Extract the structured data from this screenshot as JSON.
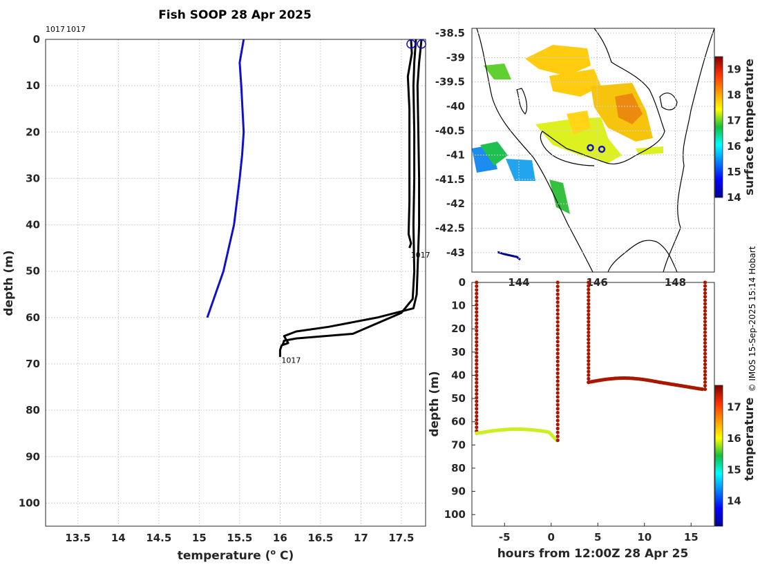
{
  "title": "Fish SOOP 28 Apr 2025",
  "credit": "© IMOS 15-Sep-2025 15:14 Hobart",
  "colors": {
    "blue_profile": "#1010cc",
    "black_profile": "#000000",
    "track_warm": "#a81800",
    "track_cool": "#ccee22"
  },
  "chart_data": [
    {
      "type": "line",
      "id": "profile",
      "xlabel": "temperature (",
      "xlabel_sup": "o",
      "xlabel_end": " C)",
      "ylabel": "depth (m)",
      "xlim": [
        13.1,
        17.8
      ],
      "ylim": [
        105,
        0
      ],
      "xticks": [
        "13.5",
        "14",
        "14.5",
        "15",
        "15.5",
        "16",
        "16.5",
        "17",
        "17.5"
      ],
      "yticks": [
        "0",
        "10",
        "20",
        "30",
        "40",
        "50",
        "60",
        "70",
        "80",
        "90",
        "100"
      ],
      "top_labels": [
        "1017",
        "1017"
      ],
      "series": [
        {
          "name": "blue",
          "color": "#1010cc",
          "points": [
            [
              15.55,
              0
            ],
            [
              15.5,
              5
            ],
            [
              15.52,
              10
            ],
            [
              15.55,
              20
            ],
            [
              15.53,
              25
            ],
            [
              15.5,
              30
            ],
            [
              15.43,
              40
            ],
            [
              15.3,
              50
            ],
            [
              15.1,
              60
            ]
          ]
        },
        {
          "name": "black-1",
          "color": "#000000",
          "points": [
            [
              17.62,
              0
            ],
            [
              17.63,
              3
            ],
            [
              17.58,
              8
            ],
            [
              17.6,
              15
            ],
            [
              17.6,
              25
            ],
            [
              17.6,
              35
            ],
            [
              17.59,
              42
            ],
            [
              17.62,
              44
            ],
            [
              17.6,
              45
            ]
          ]
        },
        {
          "name": "black-2",
          "color": "#000000",
          "points": [
            [
              17.75,
              0
            ],
            [
              17.72,
              5
            ],
            [
              17.7,
              10
            ],
            [
              17.71,
              20
            ],
            [
              17.72,
              30
            ],
            [
              17.72,
              40
            ],
            [
              17.7,
              50
            ],
            [
              17.69,
              55
            ],
            [
              17.65,
              58
            ],
            [
              17.2,
              60
            ],
            [
              16.6,
              62
            ],
            [
              16.2,
              63
            ],
            [
              16.05,
              64
            ],
            [
              16.1,
              65.5
            ],
            [
              16.02,
              66
            ],
            [
              16.0,
              67
            ],
            [
              16.0,
              68.5
            ]
          ]
        },
        {
          "name": "black-3",
          "color": "#000000",
          "points": [
            [
              17.68,
              0
            ],
            [
              17.66,
              5
            ],
            [
              17.65,
              10
            ],
            [
              17.66,
              20
            ],
            [
              17.66,
              30
            ],
            [
              17.65,
              40
            ],
            [
              17.66,
              50
            ],
            [
              17.64,
              56
            ],
            [
              17.5,
              59
            ],
            [
              16.9,
              63.5
            ],
            [
              16.2,
              64.5
            ],
            [
              16.05,
              65
            ],
            [
              16.03,
              66
            ]
          ]
        }
      ],
      "end_labels": [
        {
          "text": "1017",
          "x": 17.6,
          "y": 46.5
        },
        {
          "text": "1017",
          "x": 16.0,
          "y": 69.2
        }
      ],
      "markers": [
        [
          17.62,
          1
        ],
        [
          17.75,
          1
        ]
      ]
    },
    {
      "type": "heatmap",
      "id": "map",
      "colorbar_label": "surface temperature",
      "colorbar_range": [
        14,
        19.5
      ],
      "colorbar_ticks": [
        "14",
        "15",
        "16",
        "17",
        "18",
        "19"
      ],
      "lon_range": [
        142.8,
        149.0
      ],
      "lat_range": [
        -43.4,
        -38.4
      ],
      "lon_ticks": [
        "144",
        "146",
        "148"
      ],
      "lat_ticks": [
        "-38.5",
        "-39",
        "-39.5",
        "-40",
        "-40.5",
        "-41",
        "-41.5",
        "-42",
        "-42.5",
        "-43"
      ],
      "positions": [
        [
          145.83,
          -40.85
        ],
        [
          146.12,
          -40.88
        ]
      ]
    },
    {
      "type": "scatter",
      "id": "track",
      "xlabel": "hours from 12:00Z 28 Apr 25",
      "ylabel": "depth (m)",
      "xlim": [
        -8.5,
        17.5
      ],
      "ylim": [
        105,
        0
      ],
      "xticks": [
        "-5",
        "0",
        "5",
        "10",
        "15"
      ],
      "yticks": [
        "0",
        "10",
        "20",
        "30",
        "40",
        "50",
        "60",
        "70",
        "80",
        "90",
        "100"
      ],
      "colorbar_label": "temperature",
      "colorbar_range": [
        13.2,
        17.7
      ],
      "colorbar_ticks": [
        "14",
        "15",
        "16",
        "17"
      ]
    }
  ]
}
